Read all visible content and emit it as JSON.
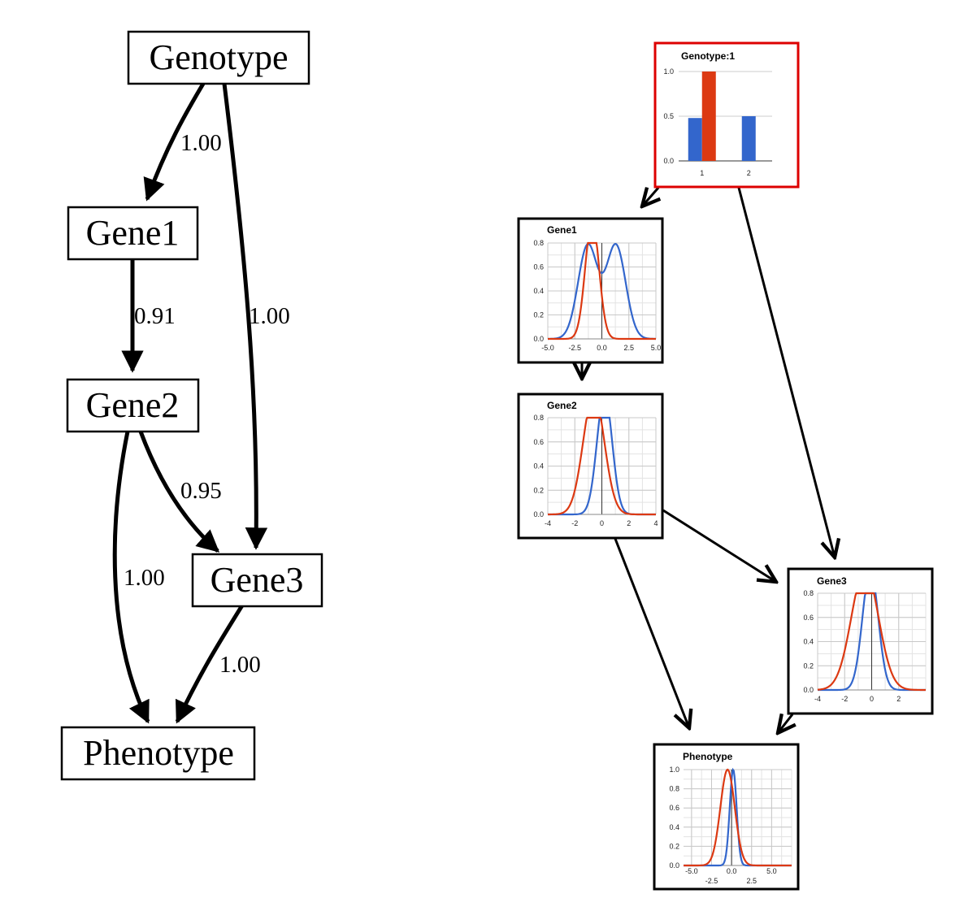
{
  "graph": {
    "nodes": [
      {
        "id": "genotype",
        "label": "Genotype"
      },
      {
        "id": "gene1",
        "label": "Gene1"
      },
      {
        "id": "gene2",
        "label": "Gene2"
      },
      {
        "id": "gene3",
        "label": "Gene3"
      },
      {
        "id": "phenotype",
        "label": "Phenotype"
      }
    ],
    "edges": [
      {
        "from": "genotype",
        "to": "gene1",
        "weight": "1.00"
      },
      {
        "from": "gene1",
        "to": "gene2",
        "weight": "0.91"
      },
      {
        "from": "genotype",
        "to": "gene3",
        "weight": "1.00"
      },
      {
        "from": "gene2",
        "to": "gene3",
        "weight": "0.95"
      },
      {
        "from": "gene2",
        "to": "phenotype",
        "weight": "1.00"
      },
      {
        "from": "gene3",
        "to": "phenotype",
        "weight": "1.00"
      }
    ]
  },
  "colors": {
    "series_a": "#3366cc",
    "series_b": "#dc3912",
    "highlight_border": "#dd0000"
  },
  "chart_data": [
    {
      "id": "genotype_plot",
      "type": "bar",
      "title": "Genotype:1",
      "highlighted": true,
      "categories": [
        "1",
        "2"
      ],
      "series": [
        {
          "color": "#3366cc",
          "values": [
            0.48,
            0.5
          ]
        },
        {
          "color": "#dc3912",
          "values": [
            1.0,
            null
          ]
        }
      ],
      "ylim": [
        0,
        1.0
      ],
      "yticks": [
        "0.0",
        "0.5",
        "1.0"
      ]
    },
    {
      "id": "gene1_plot",
      "type": "line",
      "title": "Gene1",
      "xlim": [
        -5,
        5
      ],
      "ylim": [
        0,
        0.8
      ],
      "xticks": [
        "-5.0",
        "-2.5",
        "0.0",
        "2.5",
        "5.0"
      ],
      "yticks": [
        "0.0",
        "0.2",
        "0.4",
        "0.6",
        "0.8"
      ],
      "series": [
        {
          "color": "#3366cc",
          "mixture": [
            {
              "mu": -1.3,
              "sigma": 0.9,
              "w": 0.78
            },
            {
              "mu": 1.3,
              "sigma": 0.9,
              "w": 0.78
            }
          ]
        },
        {
          "color": "#dc3912",
          "mixture": [
            {
              "mu": -0.9,
              "sigma": 0.63,
              "w": 1.0
            }
          ]
        }
      ]
    },
    {
      "id": "gene2_plot",
      "type": "line",
      "title": "Gene2",
      "xlim": [
        -4,
        4
      ],
      "ylim": [
        0,
        0.8
      ],
      "xticks": [
        "-4",
        "-2",
        "0",
        "2",
        "4"
      ],
      "yticks": [
        "0.0",
        "0.2",
        "0.4",
        "0.6",
        "0.8"
      ],
      "series": [
        {
          "color": "#3366cc",
          "mixture": [
            {
              "mu": 0.2,
              "sigma": 0.56,
              "w": 1.0
            }
          ]
        },
        {
          "color": "#dc3912",
          "mixture": [
            {
              "mu": -0.6,
              "sigma": 0.78,
              "w": 1.0
            }
          ]
        }
      ]
    },
    {
      "id": "gene3_plot",
      "type": "line",
      "title": "Gene3",
      "xlim": [
        -4,
        4
      ],
      "ylim": [
        0,
        0.8
      ],
      "xticks": [
        "-4",
        "-2",
        "0",
        "2"
      ],
      "yticks": [
        "0.0",
        "0.2",
        "0.4",
        "0.6",
        "0.8"
      ],
      "series": [
        {
          "color": "#3366cc",
          "mixture": [
            {
              "mu": -0.1,
              "sigma": 0.58,
              "w": 1.0
            }
          ]
        },
        {
          "color": "#dc3912",
          "mixture": [
            {
              "mu": -0.5,
              "sigma": 1.0,
              "w": 1.0
            }
          ]
        }
      ]
    },
    {
      "id": "phenotype_plot",
      "type": "line",
      "title": "Phenotype",
      "xlim": [
        -6,
        7.5
      ],
      "ylim": [
        0,
        1.0
      ],
      "xticks": [
        "-5.0",
        "-2.5",
        "0.0",
        "2.5",
        "5.0"
      ],
      "yticks": [
        "0.0",
        "0.2",
        "0.4",
        "0.6",
        "0.8",
        "1.0"
      ],
      "series": [
        {
          "color": "#3366cc",
          "mixture": [
            {
              "mu": 0.2,
              "sigma": 0.43,
              "w": 1.0
            }
          ]
        },
        {
          "color": "#dc3912",
          "mixture": [
            {
              "mu": -0.5,
              "sigma": 0.9,
              "w": 1.0
            }
          ]
        }
      ]
    }
  ]
}
